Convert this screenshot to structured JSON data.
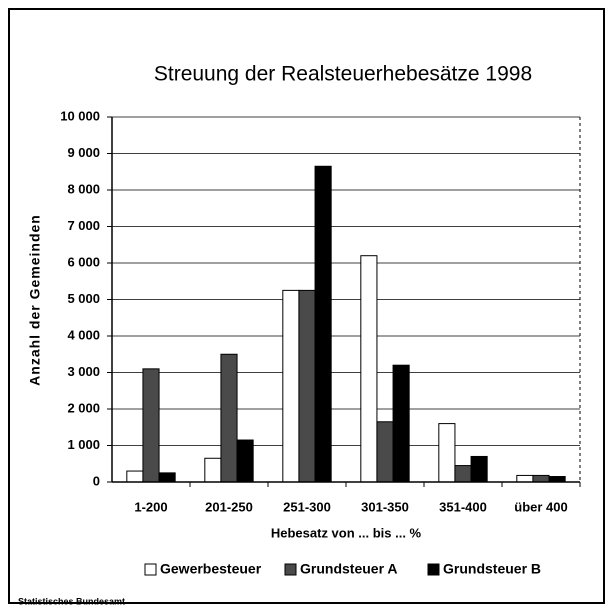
{
  "chart_data": {
    "type": "bar",
    "title": "Streuung der Realsteuerhebesätze 1998",
    "x_label": "Hebesatz von ... bis ... %",
    "y_label": "Anzahl der Gemeinden",
    "source": "Statistisches Bundesamt",
    "categories": [
      "1-200",
      "201-250",
      "251-300",
      "301-350",
      "351-400",
      "über 400"
    ],
    "series": [
      {
        "name": "Gewerbesteuer",
        "color": "#ffffff",
        "values": [
          300,
          650,
          5250,
          6200,
          1600,
          180
        ]
      },
      {
        "name": "Grundsteuer A",
        "color": "#4a4a4a",
        "values": [
          3100,
          3500,
          5250,
          1650,
          450,
          180
        ]
      },
      {
        "name": "Grundsteuer B",
        "color": "#000000",
        "values": [
          250,
          1150,
          8650,
          3200,
          700,
          150
        ]
      }
    ],
    "ylim": [
      0,
      10000
    ],
    "yticks": [
      0,
      {
        "value": 1000,
        "label": "1 000"
      },
      {
        "value": 2000,
        "label": "2 000"
      },
      {
        "value": 3000,
        "label": "3 000"
      },
      {
        "value": 4000,
        "label": "4 000"
      },
      {
        "value": 5000,
        "label": "5 000"
      },
      {
        "value": 6000,
        "label": "6 000"
      },
      {
        "value": 7000,
        "label": "7 000"
      },
      {
        "value": 8000,
        "label": "8 000"
      },
      {
        "value": 9000,
        "label": "9 000"
      },
      {
        "value": 10000,
        "label": "10 000"
      }
    ],
    "grid": true,
    "legend": "bottom"
  }
}
